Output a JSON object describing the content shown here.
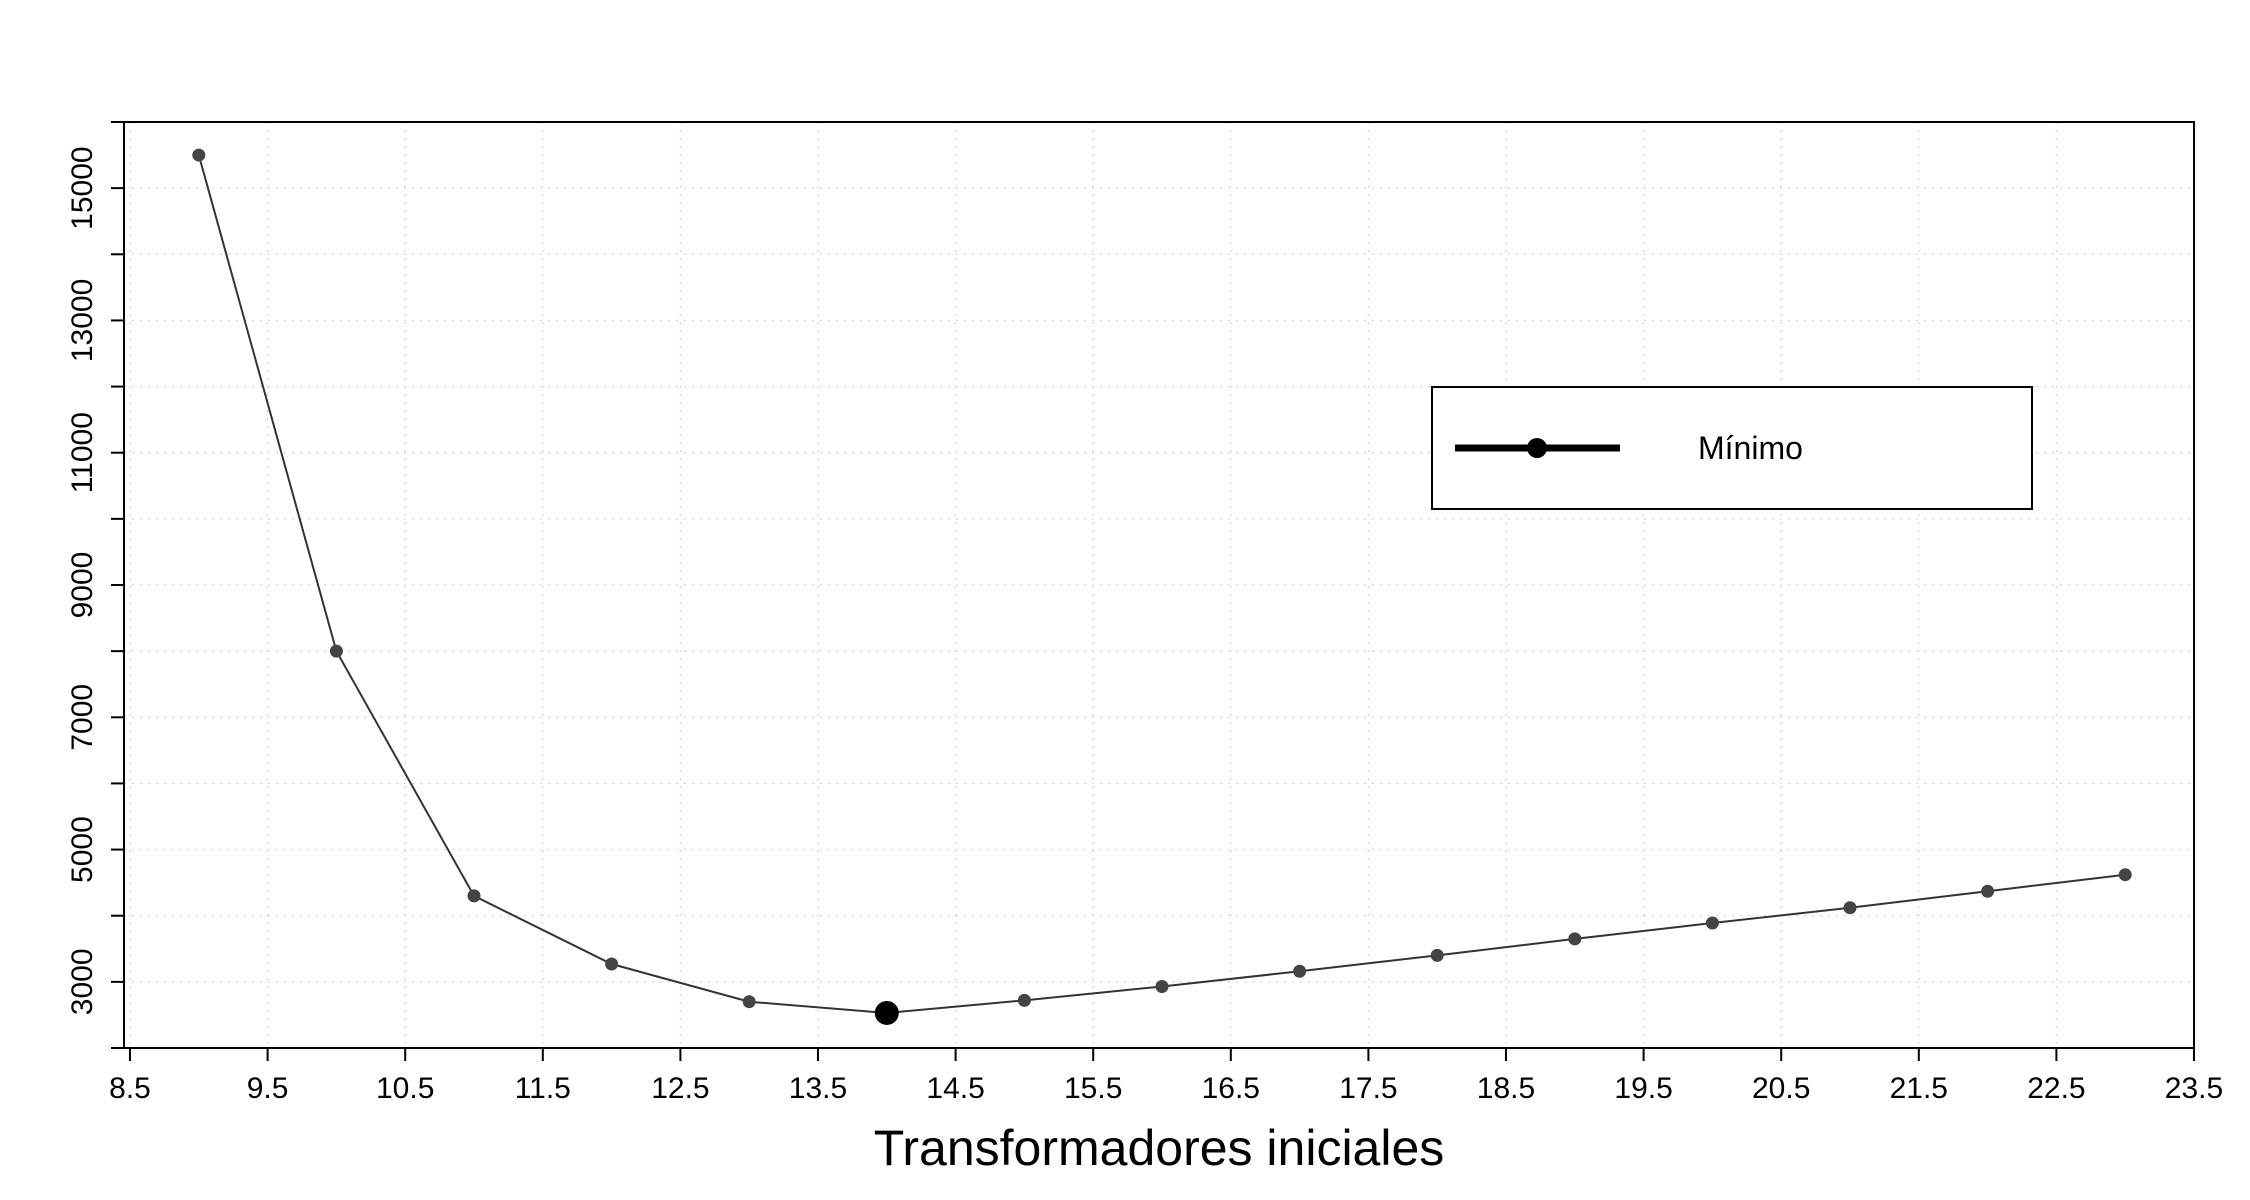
{
  "chart_data": {
    "type": "line",
    "title": "",
    "xlabel": "Transformadores iniciales",
    "ylabel": "",
    "xlim": [
      8.5,
      23.5
    ],
    "ylim": [
      2000,
      16000
    ],
    "x_ticks": [
      8.5,
      9.5,
      10.5,
      11.5,
      12.5,
      13.5,
      14.5,
      15.5,
      16.5,
      17.5,
      18.5,
      19.5,
      20.5,
      21.5,
      22.5,
      23.5
    ],
    "x_tick_labels": [
      "8.5",
      "9.5",
      "10.5",
      "11.5",
      "12.5",
      "13.5",
      "14.5",
      "15.5",
      "16.5",
      "17.5",
      "18.5",
      "19.5",
      "20.5",
      "21.5",
      "22.5",
      "23.5"
    ],
    "y_ticks": [
      2000,
      3000,
      4000,
      5000,
      6000,
      7000,
      8000,
      9000,
      10000,
      11000,
      12000,
      13000,
      14000,
      15000,
      16000
    ],
    "y_tick_labels": [
      "3000",
      "5000",
      "7000",
      "9000",
      "11000",
      "13000",
      "15000"
    ],
    "y_labeled_ticks": [
      3000,
      5000,
      7000,
      9000,
      11000,
      13000,
      15000
    ],
    "grid": true,
    "series": [
      {
        "x": [
          9,
          10,
          11,
          12,
          13,
          14,
          15,
          16,
          17,
          18,
          19,
          20,
          21,
          22,
          23
        ],
        "values": [
          15500,
          8000,
          4300,
          3270,
          2700,
          2530,
          2720,
          2930,
          3160,
          3400,
          3650,
          3890,
          4120,
          4370,
          4620
        ],
        "color": "#333333"
      }
    ],
    "highlight": {
      "x": 14,
      "value": 2530,
      "color": "#000000"
    },
    "legend": {
      "position": "upper-right",
      "entries": [
        "Mínimo"
      ]
    }
  }
}
